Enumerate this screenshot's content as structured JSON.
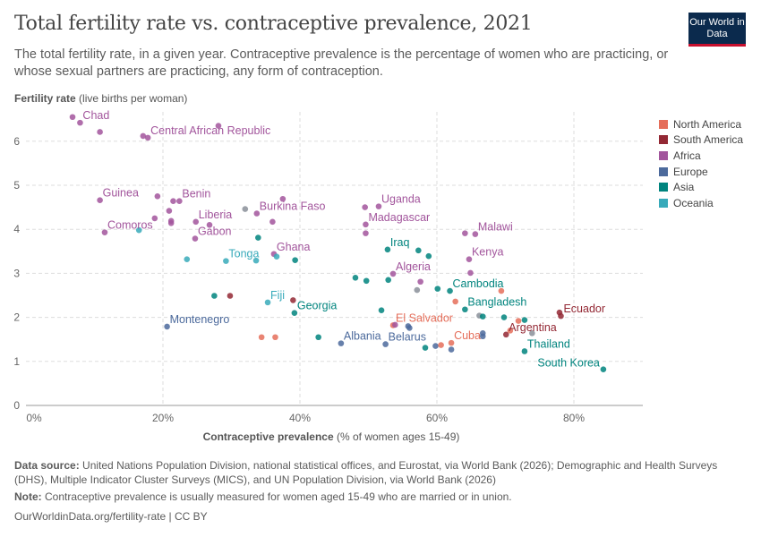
{
  "header": {
    "title": "Total fertility rate vs. contraceptive prevalence, 2021",
    "subtitle": "The total fertility rate, in a given year. Contraceptive prevalence is the percentage of women who are practicing, or whose sexual partners are practicing, any form of contraception.",
    "logo": "Our World in Data"
  },
  "chart_data": {
    "type": "scatter",
    "title": "Total fertility rate vs. contraceptive prevalence, 2021",
    "ylabel_bold": "Fertility rate",
    "ylabel_rest": "(live births per woman)",
    "xlabel_bold": "Contraceptive prevalence",
    "xlabel_rest": "(% of women ages 15-49)",
    "xlim": [
      0,
      90
    ],
    "ylim": [
      0,
      6.6
    ],
    "x_ticks": [
      0,
      20,
      40,
      60,
      80
    ],
    "x_tick_labels": [
      "0%",
      "20%",
      "40%",
      "60%",
      "80%"
    ],
    "y_ticks": [
      0,
      1,
      2,
      3,
      4,
      5,
      6
    ],
    "y_tick_labels": [
      "0",
      "1",
      "2",
      "3",
      "4",
      "5",
      "6"
    ],
    "grid": true,
    "legend_placement": "right",
    "regions": [
      {
        "name": "North America",
        "color": "#E56E5A"
      },
      {
        "name": "South America",
        "color": "#932834"
      },
      {
        "name": "Africa",
        "color": "#A2559C"
      },
      {
        "name": "Europe",
        "color": "#4C6A9C"
      },
      {
        "name": "Asia",
        "color": "#00847E"
      },
      {
        "name": "Oceania",
        "color": "#38AABA"
      }
    ],
    "other_color": "#8a8f99",
    "points": [
      {
        "x": 6.8,
        "y": 6.55,
        "r": "Africa"
      },
      {
        "x": 7.9,
        "y": 6.42,
        "r": "Africa",
        "label": "Chad"
      },
      {
        "x": 10.8,
        "y": 6.21,
        "r": "Africa"
      },
      {
        "x": 17.1,
        "y": 6.12,
        "r": "Africa"
      },
      {
        "x": 17.8,
        "y": 6.08,
        "r": "Africa",
        "label": "Central African Republic"
      },
      {
        "x": 28.1,
        "y": 6.35,
        "r": "Africa"
      },
      {
        "x": 10.8,
        "y": 4.66,
        "r": "Africa",
        "label": "Guinea"
      },
      {
        "x": 19.2,
        "y": 4.75,
        "r": "Africa"
      },
      {
        "x": 21.5,
        "y": 4.64,
        "r": "Africa"
      },
      {
        "x": 22.4,
        "y": 4.64,
        "r": "Africa",
        "label": "Benin"
      },
      {
        "x": 20.9,
        "y": 4.42,
        "r": "Africa"
      },
      {
        "x": 21.2,
        "y": 4.19,
        "r": "Africa"
      },
      {
        "x": 21.2,
        "y": 4.14,
        "r": "Africa"
      },
      {
        "x": 18.8,
        "y": 4.25,
        "r": "Africa"
      },
      {
        "x": 24.8,
        "y": 4.17,
        "r": "Africa",
        "label": "Liberia"
      },
      {
        "x": 26.8,
        "y": 4.1,
        "r": "Africa"
      },
      {
        "x": 24.7,
        "y": 3.79,
        "r": "Africa",
        "label": "Gabon"
      },
      {
        "x": 11.5,
        "y": 3.93,
        "r": "Africa",
        "label": "Comoros"
      },
      {
        "x": 16.5,
        "y": 3.98,
        "r": "Oceania"
      },
      {
        "x": 32.0,
        "y": 4.46,
        "r": null
      },
      {
        "x": 33.7,
        "y": 4.36,
        "r": "Africa",
        "label": "Burkina Faso"
      },
      {
        "x": 37.5,
        "y": 4.69,
        "r": "Africa"
      },
      {
        "x": 36.0,
        "y": 4.17,
        "r": "Africa"
      },
      {
        "x": 33.9,
        "y": 3.81,
        "r": "Asia"
      },
      {
        "x": 36.2,
        "y": 3.44,
        "r": "Africa",
        "label": "Ghana"
      },
      {
        "x": 36.6,
        "y": 3.38,
        "r": "Oceania"
      },
      {
        "x": 39.3,
        "y": 3.3,
        "r": "Asia"
      },
      {
        "x": 23.5,
        "y": 3.32,
        "r": "Oceania"
      },
      {
        "x": 29.2,
        "y": 3.28,
        "r": "Oceania",
        "label": "Tonga"
      },
      {
        "x": 33.6,
        "y": 3.29,
        "r": "Oceania"
      },
      {
        "x": 27.5,
        "y": 2.49,
        "r": "Asia"
      },
      {
        "x": 29.8,
        "y": 2.49,
        "r": "South America"
      },
      {
        "x": 35.3,
        "y": 2.34,
        "r": "Oceania",
        "label": "Fiji"
      },
      {
        "x": 39.0,
        "y": 2.39,
        "r": "South America"
      },
      {
        "x": 39.2,
        "y": 2.1,
        "r": "Asia",
        "label": "Georgia"
      },
      {
        "x": 20.6,
        "y": 1.79,
        "r": "Europe",
        "label": "Montenegro"
      },
      {
        "x": 34.4,
        "y": 1.55,
        "r": "North America"
      },
      {
        "x": 36.4,
        "y": 1.55,
        "r": "North America"
      },
      {
        "x": 42.7,
        "y": 1.55,
        "r": "Asia"
      },
      {
        "x": 49.5,
        "y": 4.5,
        "r": "Africa"
      },
      {
        "x": 51.5,
        "y": 4.52,
        "r": "Africa",
        "label": "Uganda"
      },
      {
        "x": 49.6,
        "y": 4.11,
        "r": "Africa",
        "label": "Madagascar"
      },
      {
        "x": 49.6,
        "y": 3.91,
        "r": "Africa"
      },
      {
        "x": 64.1,
        "y": 3.91,
        "r": "Africa"
      },
      {
        "x": 65.6,
        "y": 3.89,
        "r": "Africa",
        "label": "Malawi"
      },
      {
        "x": 52.8,
        "y": 3.54,
        "r": "Asia",
        "label": "Iraq"
      },
      {
        "x": 57.3,
        "y": 3.52,
        "r": "Asia"
      },
      {
        "x": 58.8,
        "y": 3.39,
        "r": "Asia"
      },
      {
        "x": 64.7,
        "y": 3.32,
        "r": "Africa",
        "label": "Kenya"
      },
      {
        "x": 64.9,
        "y": 3.01,
        "r": "Africa"
      },
      {
        "x": 53.6,
        "y": 2.99,
        "r": "Africa",
        "label": "Algeria"
      },
      {
        "x": 57.6,
        "y": 2.81,
        "r": "Africa"
      },
      {
        "x": 48.1,
        "y": 2.9,
        "r": "Asia"
      },
      {
        "x": 49.7,
        "y": 2.83,
        "r": "Asia"
      },
      {
        "x": 52.9,
        "y": 2.85,
        "r": "Asia"
      },
      {
        "x": 57.1,
        "y": 2.62,
        "r": null
      },
      {
        "x": 60.1,
        "y": 2.65,
        "r": "Asia"
      },
      {
        "x": 61.9,
        "y": 2.6,
        "r": "Asia",
        "label": "Cambodia"
      },
      {
        "x": 69.4,
        "y": 2.6,
        "r": "North America"
      },
      {
        "x": 62.7,
        "y": 2.36,
        "r": "North America"
      },
      {
        "x": 64.1,
        "y": 2.18,
        "r": "Asia",
        "label": "Bangladesh"
      },
      {
        "x": 51.9,
        "y": 2.16,
        "r": "Asia"
      },
      {
        "x": 66.2,
        "y": 2.04,
        "r": null
      },
      {
        "x": 66.7,
        "y": 2.02,
        "r": "Asia"
      },
      {
        "x": 69.8,
        "y": 2.0,
        "r": "Asia"
      },
      {
        "x": 71.9,
        "y": 1.92,
        "r": "North America"
      },
      {
        "x": 72.8,
        "y": 1.94,
        "r": "Asia"
      },
      {
        "x": 77.9,
        "y": 2.11,
        "r": "South America"
      },
      {
        "x": 78.1,
        "y": 2.03,
        "r": "South America",
        "label": "Ecuador"
      },
      {
        "x": 53.6,
        "y": 1.82,
        "r": "North America",
        "label": "El Salvador"
      },
      {
        "x": 53.9,
        "y": 1.83,
        "r": "Africa"
      },
      {
        "x": 55.8,
        "y": 1.8,
        "r": "Europe"
      },
      {
        "x": 56.0,
        "y": 1.76,
        "r": "Europe"
      },
      {
        "x": 70.1,
        "y": 1.61,
        "r": "South America",
        "label": "Argentina"
      },
      {
        "x": 70.7,
        "y": 1.7,
        "r": "North America"
      },
      {
        "x": 73.9,
        "y": 1.64,
        "r": null
      },
      {
        "x": 66.7,
        "y": 1.64,
        "r": "Europe"
      },
      {
        "x": 66.7,
        "y": 1.57,
        "r": "Europe"
      },
      {
        "x": 46.0,
        "y": 1.41,
        "r": "Europe",
        "label": "Albania"
      },
      {
        "x": 52.5,
        "y": 1.39,
        "r": "Europe",
        "label": "Belarus"
      },
      {
        "x": 58.3,
        "y": 1.31,
        "r": "Asia"
      },
      {
        "x": 59.8,
        "y": 1.35,
        "r": "Europe"
      },
      {
        "x": 60.6,
        "y": 1.37,
        "r": "North America"
      },
      {
        "x": 62.1,
        "y": 1.42,
        "r": "North America",
        "label": "Cuba"
      },
      {
        "x": 62.1,
        "y": 1.27,
        "r": "Europe"
      },
      {
        "x": 72.8,
        "y": 1.23,
        "r": "Asia",
        "label": "Thailand"
      },
      {
        "x": 84.3,
        "y": 0.82,
        "r": "Asia",
        "label": "South Korea"
      }
    ]
  },
  "footer": {
    "source_label": "Data source:",
    "source": "United Nations Population Division, national statistical offices, and Eurostat, via World Bank (2026); Demographic and Health Surveys (DHS), Multiple Indicator Cluster Surveys (MICS), and UN Population Division, via World Bank (2026)",
    "note_label": "Note:",
    "note": "Contraceptive prevalence is usually measured for women aged 15-49 who are married or in union.",
    "url": "OurWorldinData.org/fertility-rate | CC BY"
  }
}
